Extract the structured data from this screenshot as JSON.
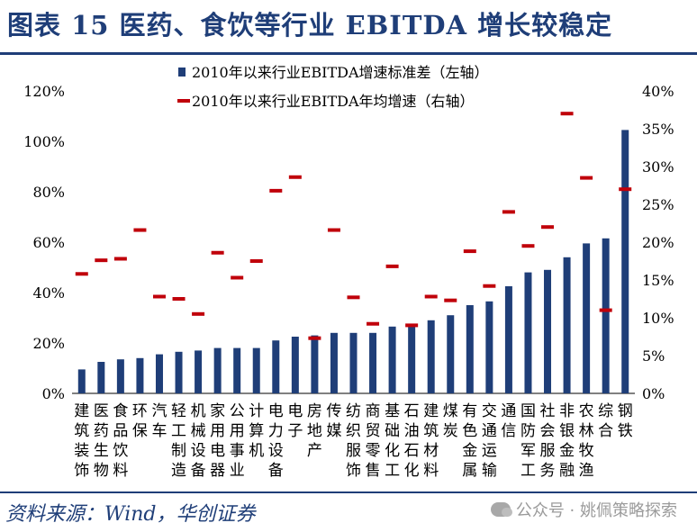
{
  "title": "图表 15 医药、食饮等行业 EBITDA 增长较稳定",
  "source": "资料来源：Wind，华创证券",
  "watermark": "公众号 · 姚佩策略探索",
  "colors": {
    "bar": "#1f3e78",
    "marker": "#c0000a",
    "title": "#1f3e78"
  },
  "chart_data": {
    "type": "bar",
    "categories": [
      "建筑装饰",
      "医药生物",
      "食品饮料",
      "环保",
      "汽车",
      "轻工制造",
      "机械设备",
      "家用电器",
      "公用事业",
      "计算机",
      "电力设备",
      "电子",
      "房地产",
      "传媒",
      "纺织服饰",
      "商贸零售",
      "基础化工",
      "石油石化",
      "建筑材料",
      "煤炭",
      "有色金属",
      "交通运输",
      "通信",
      "国防军工",
      "社会服务",
      "非银金融",
      "农林牧渔",
      "综合",
      "钢铁"
    ],
    "series": [
      {
        "name": "2010年以来行业EBITDA增速标准差（左轴）",
        "type": "bar",
        "axis": "left",
        "values": [
          9.5,
          12.5,
          13.5,
          14,
          15.5,
          16.5,
          17,
          18,
          18,
          18,
          21,
          22.5,
          23,
          24,
          24,
          24,
          26.5,
          27,
          29,
          31,
          35,
          36.5,
          42.5,
          48,
          49,
          54,
          59.5,
          61.5,
          104.5
        ]
      },
      {
        "name": "2010年以来行业EBITDA年均增速（右轴）",
        "type": "marker",
        "axis": "right",
        "values": [
          15.8,
          17.6,
          17.8,
          21.6,
          12.8,
          12.5,
          10.5,
          18.6,
          15.3,
          17.5,
          26.8,
          28.6,
          7.3,
          21.6,
          12.7,
          9.2,
          16.8,
          9.0,
          12.8,
          12.3,
          18.8,
          14.2,
          24.0,
          19.5,
          22.0,
          37.0,
          28.5,
          11.0,
          27.0
        ]
      }
    ],
    "left_axis": {
      "ylim": [
        0,
        120
      ],
      "ticks": [
        "0%",
        "20%",
        "40%",
        "60%",
        "80%",
        "100%",
        "120%"
      ]
    },
    "right_axis": {
      "ylim": [
        0,
        40
      ],
      "ticks": [
        "0%",
        "5%",
        "10%",
        "15%",
        "20%",
        "25%",
        "30%",
        "35%",
        "40%"
      ]
    },
    "legend": {
      "placement": "top-center"
    },
    "grid": false
  }
}
